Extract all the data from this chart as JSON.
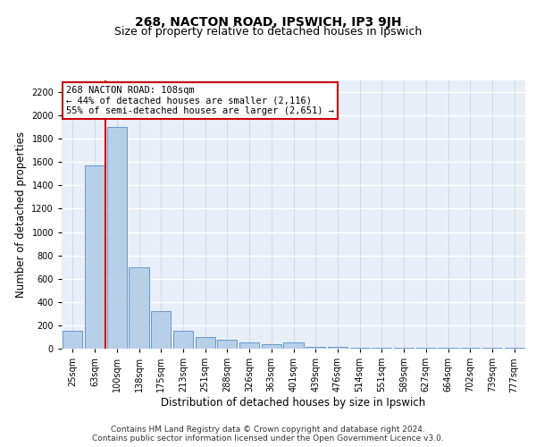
{
  "title": "268, NACTON ROAD, IPSWICH, IP3 9JH",
  "subtitle": "Size of property relative to detached houses in Ipswich",
  "xlabel": "Distribution of detached houses by size in Ipswich",
  "ylabel": "Number of detached properties",
  "categories": [
    "25sqm",
    "63sqm",
    "100sqm",
    "138sqm",
    "175sqm",
    "213sqm",
    "251sqm",
    "288sqm",
    "326sqm",
    "363sqm",
    "401sqm",
    "439sqm",
    "476sqm",
    "514sqm",
    "551sqm",
    "589sqm",
    "627sqm",
    "664sqm",
    "702sqm",
    "739sqm",
    "777sqm"
  ],
  "values": [
    150,
    1575,
    1900,
    700,
    320,
    150,
    100,
    80,
    50,
    40,
    50,
    15,
    15,
    10,
    10,
    5,
    5,
    5,
    5,
    5,
    5
  ],
  "bar_color": "#b8cfe8",
  "bar_edge_color": "#6699cc",
  "vline_color": "#cc0000",
  "vline_x_index": 1.5,
  "annotation_text": "268 NACTON ROAD: 108sqm\n← 44% of detached houses are smaller (2,116)\n55% of semi-detached houses are larger (2,651) →",
  "annotation_box_color": "#ffffff",
  "annotation_box_edge_color": "#cc0000",
  "ylim": [
    0,
    2300
  ],
  "yticks": [
    0,
    200,
    400,
    600,
    800,
    1000,
    1200,
    1400,
    1600,
    1800,
    2000,
    2200
  ],
  "background_color": "#e8eef8",
  "footer_line1": "Contains HM Land Registry data © Crown copyright and database right 2024.",
  "footer_line2": "Contains public sector information licensed under the Open Government Licence v3.0.",
  "title_fontsize": 10,
  "subtitle_fontsize": 9,
  "axis_label_fontsize": 8.5,
  "tick_fontsize": 7,
  "annotation_fontsize": 7.5,
  "footer_fontsize": 6.5
}
